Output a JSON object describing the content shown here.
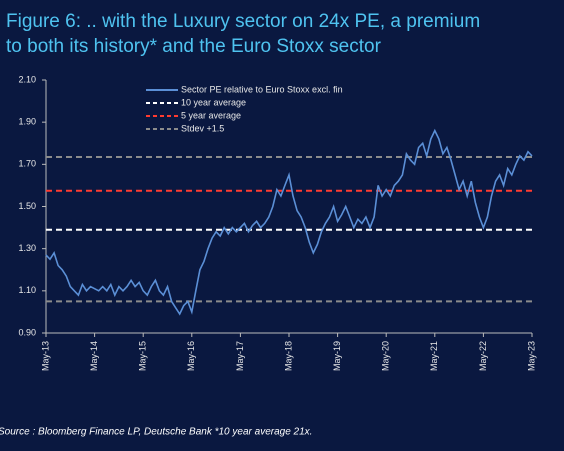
{
  "chart_data": {
    "type": "line",
    "title": [
      "Figure 6: .. with the Luxury sector on 24x PE, a premium",
      "to both its history* and the Euro Stoxx sector"
    ],
    "source": "Source : Bloomberg Finance LP, Deutsche Bank *10 year average 21x.",
    "xticks": [
      "May-13",
      "May-14",
      "May-15",
      "May-16",
      "May-17",
      "May-18",
      "May-19",
      "May-20",
      "May-21",
      "May-22",
      "May-23"
    ],
    "ylim": [
      0.9,
      2.1
    ],
    "yticks": [
      {
        "value": 0.9,
        "label": "0.90"
      },
      {
        "value": 1.1,
        "label": "1.10"
      },
      {
        "value": 1.3,
        "label": "1.30"
      },
      {
        "value": 1.5,
        "label": "1.50"
      },
      {
        "value": 1.7,
        "label": "1.70"
      },
      {
        "value": 1.9,
        "label": "1.90"
      },
      {
        "value": 2.1,
        "label": "2.10"
      }
    ],
    "series": [
      {
        "name": "Sector PE relative to Euro Stoxx excl. fin",
        "color": "#5b8fd6",
        "values": [
          1.27,
          1.25,
          1.28,
          1.22,
          1.2,
          1.17,
          1.12,
          1.1,
          1.08,
          1.13,
          1.1,
          1.12,
          1.11,
          1.1,
          1.12,
          1.1,
          1.13,
          1.08,
          1.12,
          1.1,
          1.12,
          1.15,
          1.12,
          1.14,
          1.1,
          1.08,
          1.12,
          1.15,
          1.1,
          1.08,
          1.12,
          1.05,
          1.02,
          0.99,
          1.03,
          1.05,
          1.0,
          1.1,
          1.2,
          1.24,
          1.3,
          1.35,
          1.38,
          1.36,
          1.4,
          1.37,
          1.4,
          1.38,
          1.4,
          1.42,
          1.38,
          1.41,
          1.43,
          1.4,
          1.42,
          1.45,
          1.5,
          1.58,
          1.55,
          1.6,
          1.65,
          1.55,
          1.48,
          1.45,
          1.4,
          1.33,
          1.28,
          1.32,
          1.38,
          1.42,
          1.45,
          1.5,
          1.43,
          1.46,
          1.5,
          1.45,
          1.4,
          1.44,
          1.42,
          1.45,
          1.4,
          1.45,
          1.6,
          1.55,
          1.58,
          1.55,
          1.6,
          1.62,
          1.65,
          1.75,
          1.72,
          1.7,
          1.78,
          1.8,
          1.74,
          1.82,
          1.86,
          1.82,
          1.75,
          1.78,
          1.72,
          1.65,
          1.58,
          1.62,
          1.55,
          1.62,
          1.52,
          1.45,
          1.4,
          1.45,
          1.55,
          1.62,
          1.65,
          1.6,
          1.68,
          1.65,
          1.7,
          1.74,
          1.72,
          1.76,
          1.74
        ]
      }
    ],
    "reference_lines": [
      {
        "name": "10 year average",
        "color": "#ffffff",
        "values": [
          1.39
        ]
      },
      {
        "name": "5 year average",
        "color": "#ff3b30",
        "values": [
          1.575
        ]
      },
      {
        "name": "Stdev +1.5",
        "color": "#8c8c8c",
        "values": [
          1.735,
          1.05
        ]
      }
    ]
  }
}
